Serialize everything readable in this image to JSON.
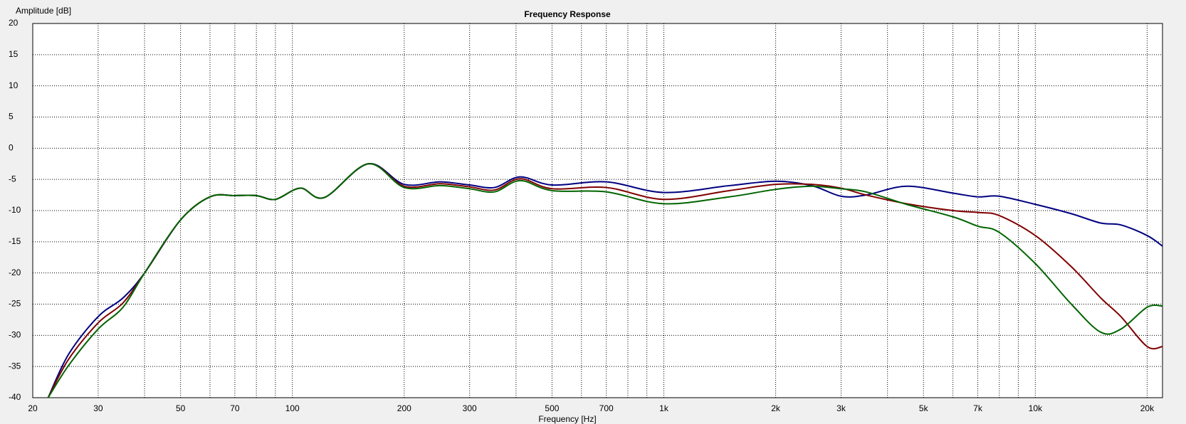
{
  "chart_data": {
    "type": "line",
    "title": "Frequency Response",
    "x_label": "Frequency [Hz]",
    "y_label": "Amplitude [dB]",
    "x": [
      22,
      25,
      30,
      35,
      40,
      50,
      60,
      70,
      80,
      90,
      105,
      122,
      160,
      200,
      250,
      300,
      350,
      410,
      500,
      700,
      1000,
      1500,
      2000,
      2500,
      3000,
      3500,
      4500,
      6000,
      7000,
      8000,
      10000,
      12500,
      15000,
      17000,
      20000,
      22000
    ],
    "series": [
      {
        "name": "Blue",
        "color": "#000080",
        "values": [
          -40,
          -33,
          -27,
          -24,
          -20,
          -11.5,
          -7.8,
          -7.6,
          -7.6,
          -8.2,
          -6.4,
          -7.9,
          -2.5,
          -5.8,
          -5.4,
          -5.9,
          -6.3,
          -4.6,
          -5.9,
          -5.4,
          -7.1,
          -6.0,
          -5.3,
          -6.0,
          -7.7,
          -7.5,
          -6.1,
          -7.2,
          -7.8,
          -7.7,
          -9.0,
          -10.5,
          -12.0,
          -12.3,
          -14.0,
          -15.7
        ]
      },
      {
        "name": "Red",
        "color": "#800000",
        "values": [
          -40,
          -33.8,
          -28,
          -24.8,
          -20,
          -11.5,
          -7.8,
          -7.6,
          -7.6,
          -8.2,
          -6.4,
          -7.9,
          -2.5,
          -6.1,
          -5.7,
          -6.2,
          -6.7,
          -4.9,
          -6.5,
          -6.3,
          -8.2,
          -6.8,
          -5.8,
          -5.8,
          -6.4,
          -7.5,
          -8.9,
          -10.0,
          -10.3,
          -10.8,
          -14.0,
          -19.0,
          -24.0,
          -27.0,
          -31.8,
          -31.8
        ]
      },
      {
        "name": "Green",
        "color": "#006400",
        "values": [
          -40,
          -34.8,
          -29,
          -25.5,
          -20,
          -11.5,
          -7.8,
          -7.6,
          -7.6,
          -8.2,
          -6.4,
          -7.9,
          -2.5,
          -6.3,
          -6.0,
          -6.5,
          -7.0,
          -5.2,
          -6.8,
          -7.0,
          -8.9,
          -7.8,
          -6.6,
          -6.1,
          -6.5,
          -7.0,
          -9.0,
          -11.0,
          -12.5,
          -13.5,
          -18.5,
          -25.0,
          -29.5,
          -29.0,
          -25.5,
          -25.3
        ]
      }
    ],
    "xlog": true,
    "xlim": [
      20,
      22000
    ],
    "ylim": [
      -40,
      20
    ],
    "xticks": [
      20,
      30,
      50,
      70,
      100,
      200,
      300,
      500,
      700,
      {
        "value": 1000,
        "label": "1k"
      },
      {
        "value": 2000,
        "label": "2k"
      },
      {
        "value": 3000,
        "label": "3k"
      },
      {
        "value": 5000,
        "label": "5k"
      },
      {
        "value": 7000,
        "label": "7k"
      },
      {
        "value": 10000,
        "label": "10k"
      },
      {
        "value": 20000,
        "label": "20k"
      }
    ],
    "xminor": [
      40,
      60,
      80,
      90,
      400,
      600,
      800,
      900,
      4000,
      6000,
      8000,
      9000
    ],
    "yticks": [
      20,
      15,
      10,
      5,
      0,
      -5,
      -10,
      -15,
      -20,
      -25,
      -30,
      -35,
      -40
    ],
    "grid": true
  }
}
